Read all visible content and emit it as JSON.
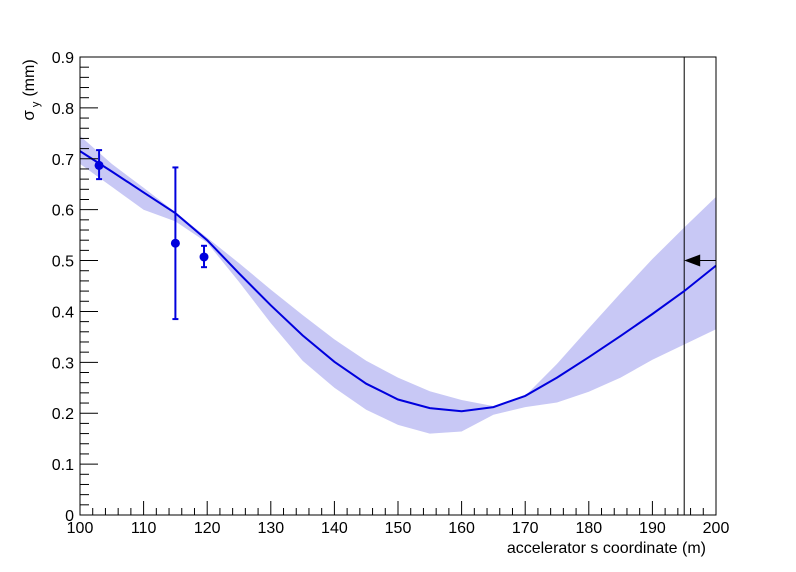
{
  "chart_data": {
    "type": "line",
    "title": "",
    "xlabel": "accelerator s coordinate (m)",
    "ylabel_main": "σ",
    "ylabel_sub": "y",
    "ylabel_unit": "(mm)",
    "xlim": [
      100,
      200
    ],
    "ylim": [
      0,
      0.9
    ],
    "x_major_ticks": [
      100,
      110,
      120,
      130,
      140,
      150,
      160,
      170,
      180,
      190,
      200
    ],
    "y_major_ticks": [
      0,
      0.1,
      0.2,
      0.3,
      0.4,
      0.5,
      0.6,
      0.7,
      0.8,
      0.9
    ],
    "x_tick_labels": [
      "100",
      "110",
      "120",
      "130",
      "140",
      "150",
      "160",
      "170",
      "180",
      "190",
      "200"
    ],
    "y_tick_labels": [
      "0",
      "0.1",
      "0.2",
      "0.3",
      "0.4",
      "0.5",
      "0.6",
      "0.7",
      "0.8",
      "0.9"
    ],
    "grid": false,
    "colors": {
      "fit_line": "#0000dd",
      "band": "#c8c8f5",
      "points": "#0000dd",
      "marker": "#000000"
    },
    "fit_curve": {
      "x": [
        100,
        105,
        110,
        115,
        120,
        125,
        130,
        135,
        140,
        145,
        150,
        155,
        160,
        165,
        170,
        175,
        180,
        185,
        190,
        195,
        200
      ],
      "y": [
        0.715,
        0.675,
        0.634,
        0.593,
        0.54,
        0.475,
        0.412,
        0.353,
        0.301,
        0.258,
        0.227,
        0.21,
        0.204,
        0.212,
        0.234,
        0.27,
        0.31,
        0.352,
        0.395,
        0.44,
        0.49
      ]
    },
    "error_band": {
      "x": [
        100,
        105,
        110,
        115,
        120,
        125,
        130,
        135,
        140,
        145,
        150,
        155,
        160,
        165,
        170,
        175,
        180,
        185,
        190,
        195,
        200
      ],
      "upper": [
        0.745,
        0.69,
        0.643,
        0.595,
        0.545,
        0.495,
        0.443,
        0.393,
        0.345,
        0.303,
        0.27,
        0.243,
        0.226,
        0.214,
        0.234,
        0.297,
        0.367,
        0.436,
        0.503,
        0.565,
        0.625
      ],
      "lower": [
        0.69,
        0.645,
        0.6,
        0.577,
        0.535,
        0.458,
        0.377,
        0.303,
        0.25,
        0.207,
        0.177,
        0.16,
        0.164,
        0.197,
        0.212,
        0.221,
        0.242,
        0.27,
        0.305,
        0.335,
        0.365
      ]
    },
    "data_points": [
      {
        "x": 103,
        "y": 0.687,
        "err_low": 0.66,
        "err_high": 0.717
      },
      {
        "x": 115,
        "y": 0.534,
        "err_low": 0.385,
        "err_high": 0.683
      },
      {
        "x": 119.5,
        "y": 0.507,
        "err_low": 0.487,
        "err_high": 0.529
      }
    ],
    "vertical_marker": {
      "x": 195
    },
    "target_arrow": {
      "x_start": 200,
      "x_end": 195,
      "y": 0.5
    }
  }
}
